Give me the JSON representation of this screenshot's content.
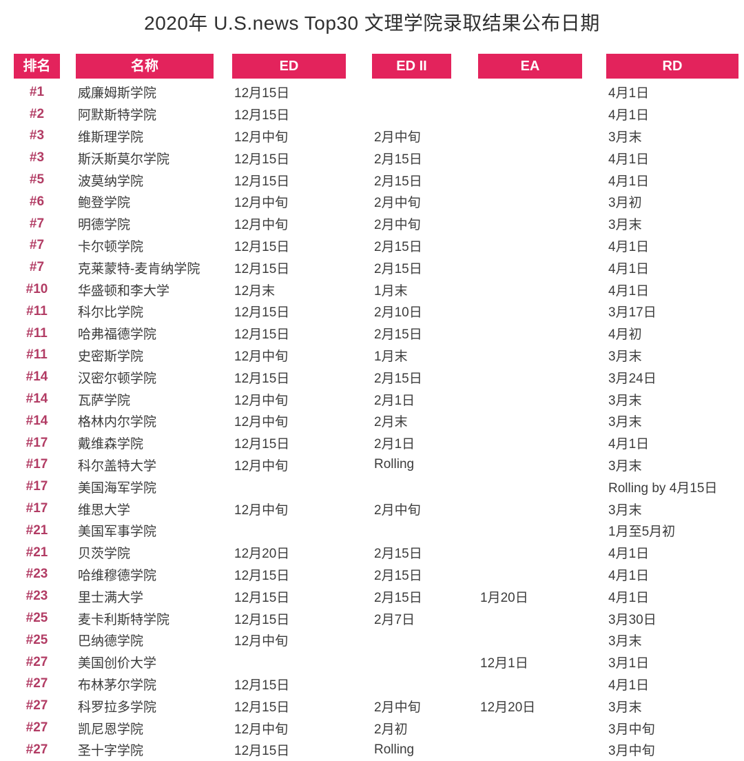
{
  "title": "2020年 U.S.news Top30 文理学院录取结果公布日期",
  "colors": {
    "header_bg": "#e3235c",
    "header_text": "#ffffff",
    "rank_text": "#b23c64",
    "body_text": "#3b3b3b",
    "title_text": "#2f2f2f",
    "background": "#ffffff"
  },
  "chart_data": {
    "type": "table",
    "title": "2020年 U.S.news Top30 文理学院录取结果公布日期",
    "columns": [
      {
        "key": "rank",
        "label": "排名"
      },
      {
        "key": "name",
        "label": "名称"
      },
      {
        "key": "ed",
        "label": "ED"
      },
      {
        "key": "edii",
        "label": "ED II"
      },
      {
        "key": "ea",
        "label": "EA"
      },
      {
        "key": "rd",
        "label": "RD"
      }
    ],
    "rows": [
      [
        "#1",
        "威廉姆斯学院",
        "12月15日",
        "",
        "",
        "4月1日"
      ],
      [
        "#2",
        "阿默斯特学院",
        "12月15日",
        "",
        "",
        "4月1日"
      ],
      [
        "#3",
        "维斯理学院",
        "12月中旬",
        "2月中旬",
        "",
        "3月末"
      ],
      [
        "#3",
        "斯沃斯莫尔学院",
        "12月15日",
        "2月15日",
        "",
        "4月1日"
      ],
      [
        "#5",
        "波莫纳学院",
        "12月15日",
        "2月15日",
        "",
        "4月1日"
      ],
      [
        "#6",
        "鲍登学院",
        "12月中旬",
        "2月中旬",
        "",
        "3月初"
      ],
      [
        "#7",
        "明德学院",
        "12月中旬",
        "2月中旬",
        "",
        "3月末"
      ],
      [
        "#7",
        "卡尔顿学院",
        "12月15日",
        "2月15日",
        "",
        "4月1日"
      ],
      [
        "#7",
        "克莱蒙特-麦肯纳学院",
        "12月15日",
        "2月15日",
        "",
        "4月1日"
      ],
      [
        "#10",
        "华盛顿和李大学",
        "12月末",
        "1月末",
        "",
        "4月1日"
      ],
      [
        "#11",
        "科尔比学院",
        "12月15日",
        "2月10日",
        "",
        "3月17日"
      ],
      [
        "#11",
        "哈弗福德学院",
        "12月15日",
        "2月15日",
        "",
        "4月初"
      ],
      [
        "#11",
        "史密斯学院",
        "12月中旬",
        "1月末",
        "",
        "3月末"
      ],
      [
        "#14",
        "汉密尔顿学院",
        "12月15日",
        "2月15日",
        "",
        "3月24日"
      ],
      [
        "#14",
        "瓦萨学院",
        "12月中旬",
        "2月1日",
        "",
        "3月末"
      ],
      [
        "#14",
        "格林内尔学院",
        "12月中旬",
        "2月末",
        "",
        "3月末"
      ],
      [
        "#17",
        "戴维森学院",
        "12月15日",
        "2月1日",
        "",
        "4月1日"
      ],
      [
        "#17",
        "科尔盖特大学",
        "12月中旬",
        "Rolling",
        "",
        "3月末"
      ],
      [
        "#17",
        "美国海军学院",
        "",
        "",
        "",
        "Rolling by 4月15日"
      ],
      [
        "#17",
        "维思大学",
        "12月中旬",
        "2月中旬",
        "",
        "3月末"
      ],
      [
        "#21",
        "美国军事学院",
        "",
        "",
        "",
        "1月至5月初"
      ],
      [
        "#21",
        "贝茨学院",
        "12月20日",
        "2月15日",
        "",
        "4月1日"
      ],
      [
        "#23",
        "哈维穆德学院",
        "12月15日",
        "2月15日",
        "",
        "4月1日"
      ],
      [
        "#23",
        "里士满大学",
        "12月15日",
        "2月15日",
        "1月20日",
        "4月1日"
      ],
      [
        "#25",
        "麦卡利斯特学院",
        "12月15日",
        "2月7日",
        "",
        "3月30日"
      ],
      [
        "#25",
        "巴纳德学院",
        "12月中旬",
        "",
        "",
        "3月末"
      ],
      [
        "#27",
        "美国创价大学",
        "",
        "",
        "12月1日",
        "3月1日"
      ],
      [
        "#27",
        "布林茅尔学院",
        "12月15日",
        "",
        "",
        "4月1日"
      ],
      [
        "#27",
        "科罗拉多学院",
        "12月15日",
        "2月中旬",
        "12月20日",
        "3月末"
      ],
      [
        "#27",
        "凯尼恩学院",
        "12月中旬",
        "2月初",
        "",
        "3月中旬"
      ],
      [
        "#27",
        "圣十字学院",
        "12月15日",
        "Rolling",
        "",
        "3月中旬"
      ]
    ]
  }
}
